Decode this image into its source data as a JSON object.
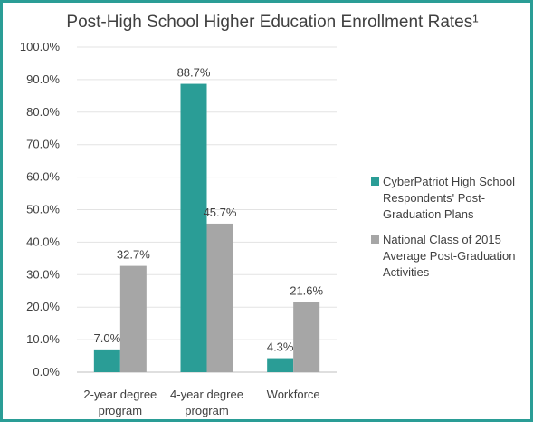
{
  "chart_data": {
    "type": "bar",
    "title": "Post-High School Higher Education Enrollment Rates¹",
    "categories": [
      [
        "2-year degree",
        "program"
      ],
      [
        "4-year degree",
        "program"
      ],
      [
        "Workforce"
      ]
    ],
    "series": [
      {
        "name": [
          "CyberPatriot High School",
          "Respondents' Post-",
          "Graduation Plans"
        ],
        "values": [
          7.0,
          88.7,
          4.3
        ],
        "labels": [
          "7.0%",
          "88.7%",
          "4.3%"
        ],
        "color": "#2a9d96"
      },
      {
        "name": [
          "National Class of 2015",
          "Average Post-Graduation",
          "Activities"
        ],
        "values": [
          32.7,
          45.7,
          21.6
        ],
        "labels": [
          "32.7%",
          "45.7%",
          "21.6%"
        ],
        "color": "#a6a6a6"
      }
    ],
    "yticks": [
      "0.0%",
      "10.0%",
      "20.0%",
      "30.0%",
      "40.0%",
      "50.0%",
      "60.0%",
      "70.0%",
      "80.0%",
      "90.0%",
      "100.0%"
    ],
    "ylim": [
      0,
      100
    ],
    "xlabel": "",
    "ylabel": "",
    "grid": true,
    "legend_position": "right"
  }
}
